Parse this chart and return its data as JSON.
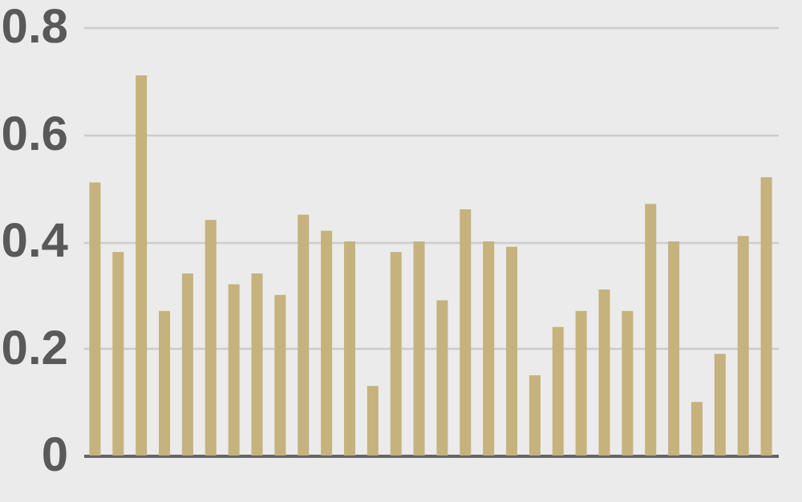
{
  "chart_data": {
    "type": "bar",
    "categories": [
      null,
      null,
      null,
      null,
      null,
      null,
      null,
      null,
      null,
      null,
      null,
      null,
      null,
      null,
      null,
      null,
      null,
      null,
      null,
      null,
      null,
      null,
      null,
      null,
      null,
      null,
      null,
      null,
      null,
      null
    ],
    "values": [
      0.51,
      0.38,
      0.71,
      0.27,
      0.34,
      0.44,
      0.32,
      0.34,
      0.3,
      0.45,
      0.42,
      0.4,
      0.13,
      0.38,
      0.4,
      0.29,
      0.46,
      0.4,
      0.39,
      0.15,
      0.24,
      0.27,
      0.31,
      0.27,
      0.47,
      0.4,
      0.1,
      0.19,
      0.41,
      0.52
    ],
    "color": "#c6b27d",
    "ylim": [
      0,
      0.8
    ],
    "yticks": [
      0,
      0.2,
      0.4,
      0.6,
      0.8
    ],
    "grid": "y",
    "tick_labels": "y"
  }
}
